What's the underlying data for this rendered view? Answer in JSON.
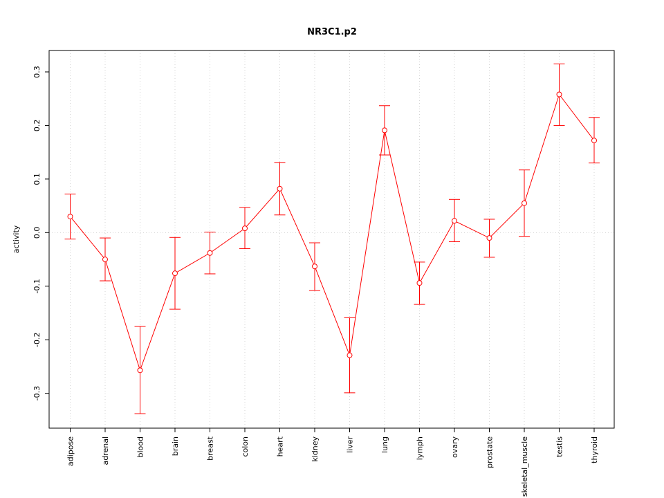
{
  "chart_data": {
    "type": "line",
    "title": "NR3C1.p2",
    "xlabel": "",
    "ylabel": "activity",
    "categories": [
      "adipose",
      "adrenal",
      "blood",
      "brain",
      "breast",
      "colon",
      "heart",
      "kidney",
      "liver",
      "lung",
      "lymph",
      "ovary",
      "prostate",
      "skeletal_muscle",
      "testis",
      "thyroid"
    ],
    "series": [
      {
        "values": [
          0.03,
          -0.05,
          -0.257,
          -0.076,
          -0.038,
          0.008,
          0.082,
          -0.063,
          -0.229,
          0.191,
          -0.094,
          0.022,
          -0.01,
          0.055,
          0.258,
          0.172
        ],
        "error_upper": [
          0.072,
          -0.01,
          -0.175,
          -0.009,
          0.001,
          0.047,
          0.131,
          -0.019,
          -0.159,
          0.237,
          -0.055,
          0.062,
          0.025,
          0.117,
          0.315,
          0.215
        ],
        "error_lower": [
          -0.012,
          -0.09,
          -0.338,
          -0.143,
          -0.077,
          -0.03,
          0.033,
          -0.108,
          -0.299,
          0.145,
          -0.134,
          -0.017,
          -0.046,
          -0.007,
          0.2,
          0.13
        ]
      }
    ],
    "yticks": [
      "-0.3",
      "-0.2",
      "-0.1",
      "0.0",
      "0.1",
      "0.2",
      "0.3"
    ],
    "ytick_values": [
      -0.3,
      -0.2,
      -0.1,
      0.0,
      0.1,
      0.2,
      0.3
    ],
    "ylim": [
      -0.365,
      0.34
    ],
    "grid": true,
    "colors": {
      "series": "#ff0000",
      "grid": "#d3d3d3",
      "axis": "#000000"
    }
  }
}
